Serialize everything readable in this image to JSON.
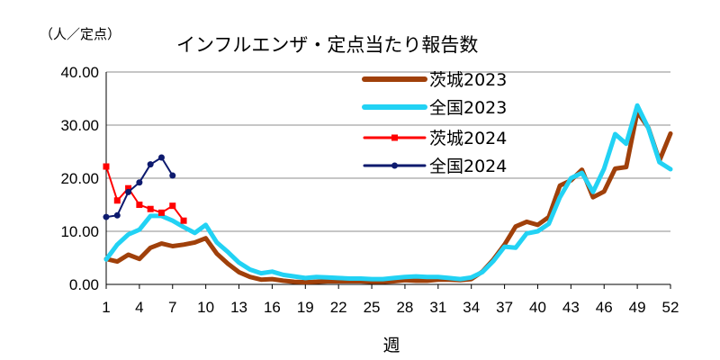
{
  "chart_data": {
    "type": "line",
    "title": "インフルエンザ・定点当たり報告数",
    "unit_label": "（人／定点）",
    "xlabel": "週",
    "ylabel": "",
    "ylim": [
      0,
      40
    ],
    "xlim": [
      1,
      52
    ],
    "y_ticks": [
      "0.00",
      "10.00",
      "20.00",
      "30.00",
      "40.00"
    ],
    "x_ticks": [
      "1",
      "4",
      "7",
      "10",
      "13",
      "16",
      "19",
      "22",
      "25",
      "28",
      "31",
      "34",
      "37",
      "40",
      "43",
      "46",
      "49",
      "52"
    ],
    "grid": true,
    "legend_position": "top-right",
    "series": [
      {
        "name": "茨城2023",
        "color": "#a0400a",
        "x": [
          1,
          2,
          3,
          4,
          5,
          6,
          7,
          8,
          9,
          10,
          11,
          12,
          13,
          14,
          15,
          16,
          17,
          18,
          19,
          20,
          21,
          22,
          23,
          24,
          25,
          26,
          27,
          28,
          29,
          30,
          31,
          32,
          33,
          34,
          35,
          36,
          37,
          38,
          39,
          40,
          41,
          42,
          43,
          44,
          45,
          46,
          47,
          48,
          49,
          50,
          51,
          52
        ],
        "values": [
          4.8,
          4.3,
          5.6,
          4.8,
          6.9,
          7.7,
          7.2,
          7.5,
          7.9,
          8.7,
          5.8,
          3.9,
          2.3,
          1.4,
          0.9,
          1.0,
          0.7,
          0.5,
          0.4,
          0.5,
          0.6,
          0.6,
          0.6,
          0.6,
          0.5,
          0.5,
          0.6,
          0.8,
          0.7,
          0.7,
          0.9,
          0.9,
          0.8,
          1.0,
          2.4,
          4.7,
          7.5,
          10.9,
          11.8,
          11.2,
          12.7,
          18.6,
          19.6,
          21.6,
          16.4,
          17.5,
          21.8,
          22.1,
          32.5,
          29.5,
          23.3,
          28.4
        ]
      },
      {
        "name": "全国2023",
        "color": "#22d2f4",
        "x": [
          1,
          2,
          3,
          4,
          5,
          6,
          7,
          8,
          9,
          10,
          11,
          12,
          13,
          14,
          15,
          16,
          17,
          18,
          19,
          20,
          21,
          22,
          23,
          24,
          25,
          26,
          27,
          28,
          29,
          30,
          31,
          32,
          33,
          34,
          35,
          36,
          37,
          38,
          39,
          40,
          41,
          42,
          43,
          44,
          45,
          46,
          47,
          48,
          49,
          50,
          51,
          52
        ],
        "values": [
          4.7,
          7.5,
          9.4,
          10.3,
          12.9,
          12.9,
          12.0,
          10.8,
          9.7,
          11.2,
          7.9,
          6.1,
          4.1,
          2.8,
          2.1,
          2.4,
          1.8,
          1.5,
          1.2,
          1.4,
          1.3,
          1.2,
          1.1,
          1.1,
          1.0,
          1.0,
          1.2,
          1.4,
          1.5,
          1.4,
          1.4,
          1.2,
          1.0,
          1.3,
          2.3,
          4.4,
          7.1,
          6.9,
          9.6,
          10.0,
          11.4,
          16.4,
          20.0,
          21.0,
          17.4,
          21.8,
          28.3,
          26.5,
          33.7,
          29.4,
          23.0,
          21.7
        ]
      },
      {
        "name": "茨城2024",
        "color": "#ff0000",
        "marker": "square",
        "x": [
          1,
          2,
          3,
          4,
          5,
          6,
          7,
          8
        ],
        "values": [
          22.2,
          15.8,
          18.1,
          15.0,
          14.2,
          13.5,
          14.8,
          12.0
        ]
      },
      {
        "name": "全国2024",
        "color": "#0d1a6e",
        "marker": "circle",
        "x": [
          1,
          2,
          3,
          4,
          5,
          6,
          7
        ],
        "values": [
          12.7,
          13.0,
          17.4,
          19.2,
          22.6,
          23.9,
          20.5
        ]
      }
    ]
  }
}
